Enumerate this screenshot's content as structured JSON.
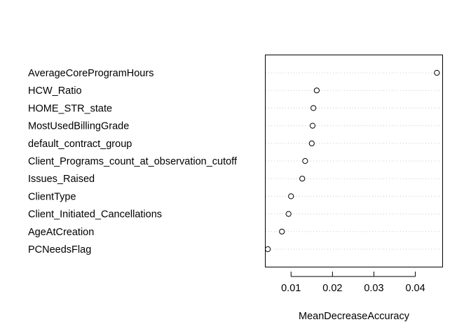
{
  "chart_data": {
    "type": "scatter",
    "title": "",
    "xlabel": "MeanDecreaseAccuracy",
    "ylabel": "",
    "xlim": [
      0.0037,
      0.0465
    ],
    "x_ticks": [
      0.01,
      0.02,
      0.03,
      0.04
    ],
    "x_tick_labels": [
      "0.01",
      "0.02",
      "0.03",
      "0.04"
    ],
    "grid": "dotted horizontal guide lines",
    "marker": "open-circle",
    "categories": [
      "AverageCoreProgramHours",
      "HCW_Ratio",
      "HOME_STR_state",
      "MostUsedBillingGrade",
      "default_contract_group",
      "Client_Programs_count_at_observation_cutoff",
      "Issues_Raised",
      "ClientType",
      "Client_Initiated_Cancellations",
      "AgeAtCreation",
      "PCNeedsFlag"
    ],
    "values": [
      0.0452,
      0.0162,
      0.0154,
      0.0152,
      0.015,
      0.0134,
      0.0127,
      0.01,
      0.0094,
      0.0078,
      0.0044
    ]
  }
}
